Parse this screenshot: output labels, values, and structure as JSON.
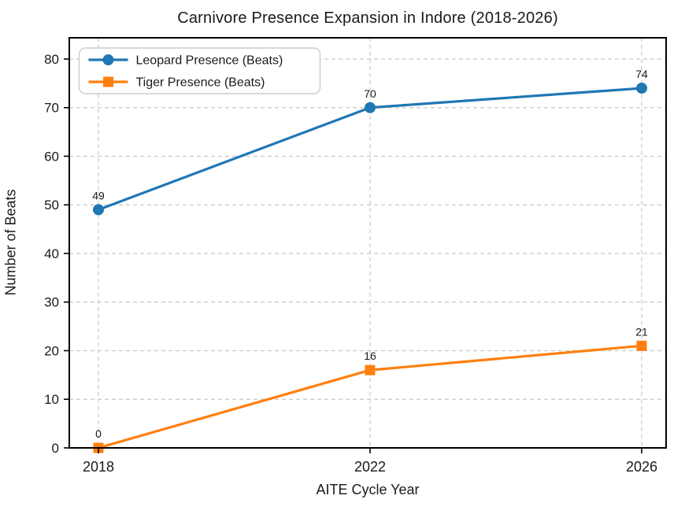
{
  "chart_data": {
    "type": "line",
    "title": "Carnivore Presence Expansion in Indore (2018-2026)",
    "xlabel": "AITE Cycle Year",
    "ylabel": "Number of Beats",
    "x": [
      2018,
      2022,
      2026
    ],
    "x_tick_labels": [
      "2018",
      "2022",
      "2026"
    ],
    "y_ticks": [
      0,
      10,
      20,
      30,
      40,
      50,
      60,
      70,
      80
    ],
    "ylim": [
      0,
      84.4
    ],
    "grid": true,
    "grid_style": "dashed",
    "legend_position": "upper left",
    "data_labels": true,
    "series": [
      {
        "name": "Leopard Presence (Beats)",
        "values": [
          49,
          70,
          74
        ],
        "color": "#1f77b4",
        "marker": "circle",
        "labels": [
          "49",
          "70",
          "74"
        ]
      },
      {
        "name": "Tiger Presence (Beats)",
        "values": [
          0,
          16,
          21
        ],
        "color": "#ff7f0e",
        "marker": "square",
        "labels": [
          "0",
          "16",
          "21"
        ]
      }
    ]
  },
  "colors": {
    "background": "#ffffff",
    "axis": "#000000",
    "grid": "#c8c8c8",
    "text": "#1a1a1a",
    "legend_border": "#cccccc",
    "legend_background": "#ffffff"
  }
}
